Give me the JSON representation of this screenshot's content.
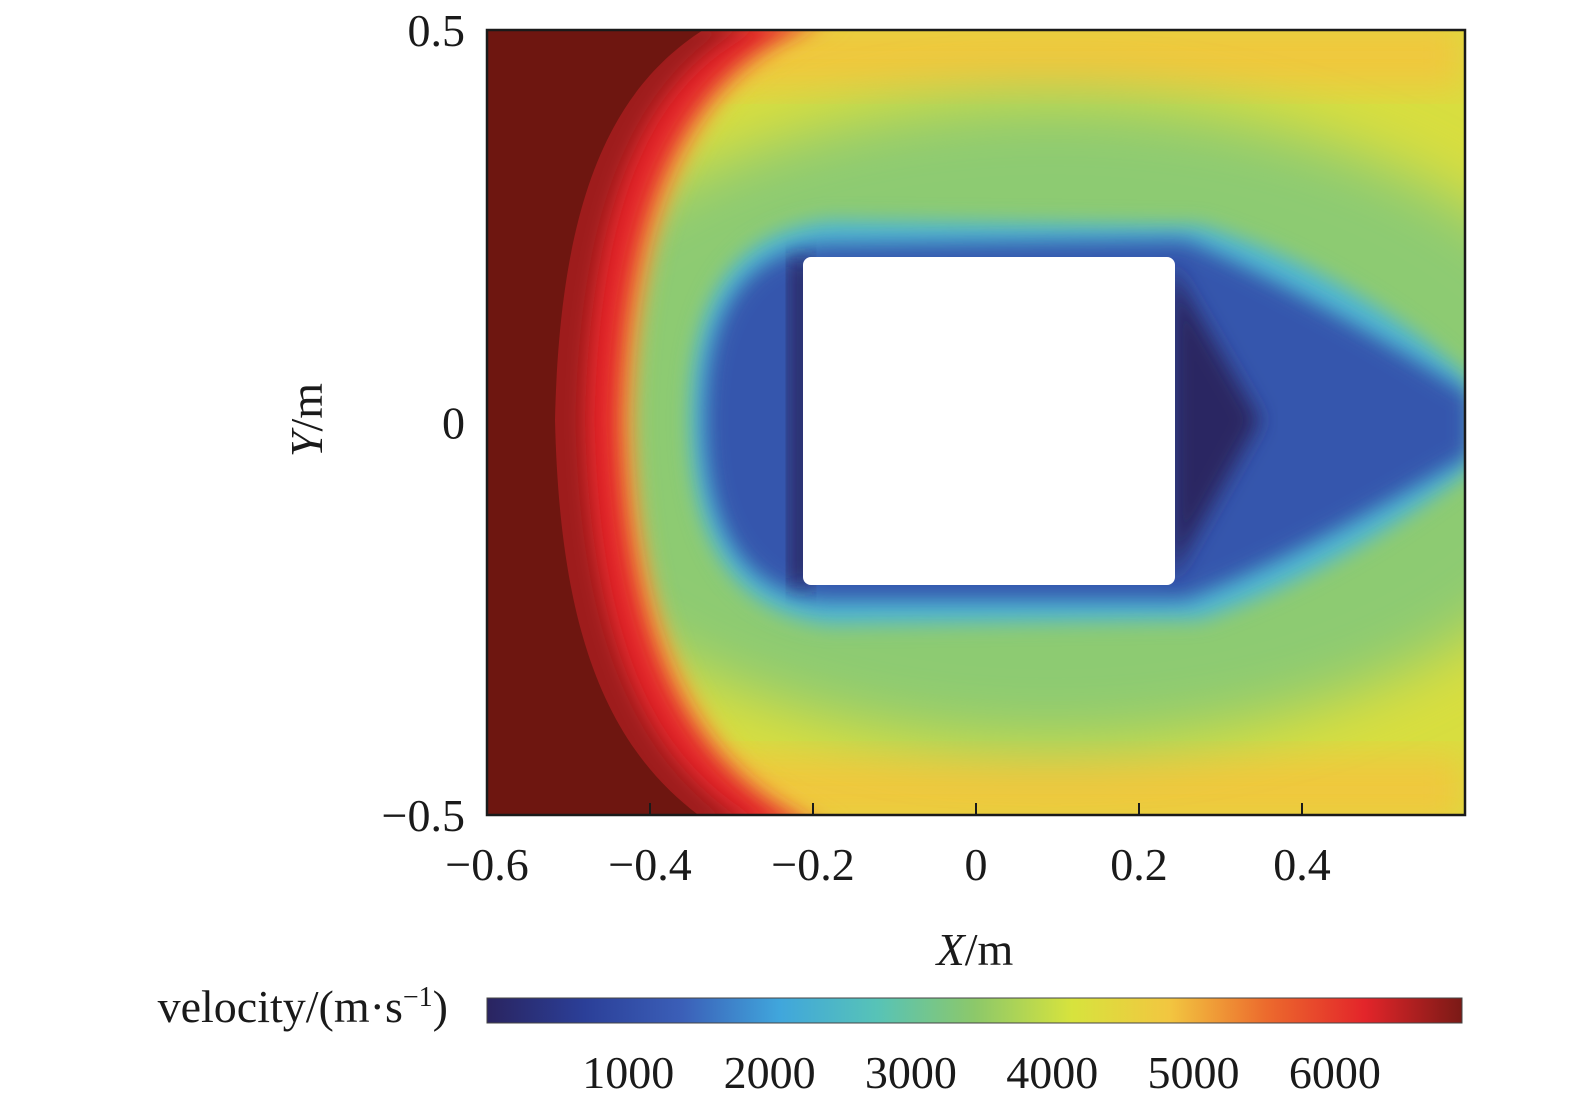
{
  "chart_data": {
    "type": "heatmap",
    "x_axis": {
      "label_italic": "X",
      "label_unit": "/m",
      "range": [
        -0.6,
        0.6
      ],
      "ticks": [
        -0.6,
        -0.4,
        -0.2,
        0,
        0.2,
        0.4
      ],
      "tick_labels": [
        "−0.6",
        "−0.4",
        "−0.2",
        "0",
        "0.2",
        "0.4"
      ]
    },
    "y_axis": {
      "label_italic": "Y",
      "label_unit": "/m",
      "range": [
        -0.5,
        0.5
      ],
      "ticks": [
        -0.5,
        0,
        0.5
      ],
      "tick_labels": [
        "−0.5",
        "0",
        "0.5"
      ]
    },
    "colorbar": {
      "label": "velocity/(m·s",
      "label_sup": "−1",
      "label_close": ")",
      "range": [
        0,
        6900
      ],
      "ticks": [
        1000,
        2000,
        3000,
        4000,
        5000,
        6000
      ],
      "tick_labels": [
        "1000",
        "2000",
        "3000",
        "4000",
        "5000",
        "6000"
      ],
      "colormap": [
        "#2a2460",
        "#2b3f98",
        "#3b5fb8",
        "#40a6dc",
        "#57c3b7",
        "#8cc86a",
        "#d7e33d",
        "#f2c640",
        "#ec6a2d",
        "#e3252a",
        "#7a1a16"
      ]
    },
    "obstacle": {
      "x": [
        -0.21,
        0.245
      ],
      "y": [
        -0.2,
        0.2
      ],
      "shape": "square"
    },
    "field_zones": [
      {
        "region": "upstream",
        "x": [
          -0.6,
          -0.35
        ],
        "velocity": 6800
      },
      {
        "region": "bow-shock",
        "velocity": 5200
      },
      {
        "region": "outer-flow",
        "velocity": 4300
      },
      {
        "region": "boundary-layer",
        "velocity": 2500
      },
      {
        "region": "near-obstacle",
        "velocity": 800
      },
      {
        "region": "wake",
        "velocity": 400
      }
    ]
  }
}
